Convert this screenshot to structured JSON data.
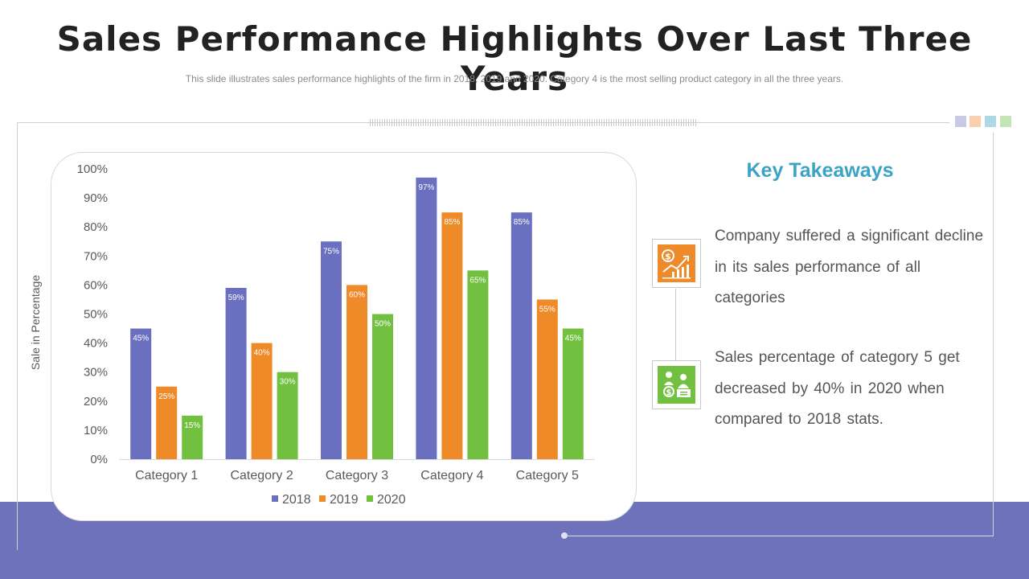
{
  "header": {
    "title": "Sales Performance Highlights Over Last Three Years",
    "subtitle": "This slide illustrates sales performance  highlights of the firm in 2018, 2019 and 2020. Category 4 is the most selling product category in all the three years."
  },
  "decor": {
    "squares": [
      "#c7c9e6",
      "#f8d0b0",
      "#add9e6",
      "#c3e4b4"
    ],
    "band_color": "#6d72bb"
  },
  "chart_data": {
    "type": "bar",
    "categories": [
      "Category 1",
      "Category 2",
      "Category 3",
      "Category 4",
      "Category 5"
    ],
    "series": [
      {
        "name": "2018",
        "values": [
          45,
          59,
          75,
          97,
          85
        ],
        "color": "#6b6fc0",
        "labels": [
          "45%",
          "59%",
          "75%",
          "97%",
          "85%"
        ]
      },
      {
        "name": "2019",
        "values": [
          25,
          40,
          60,
          85,
          55
        ],
        "color": "#ef8a29",
        "labels": [
          "25%",
          "40%",
          "60%",
          "85%",
          "55%"
        ]
      },
      {
        "name": "2020",
        "values": [
          15,
          30,
          50,
          65,
          45
        ],
        "color": "#72c040",
        "labels": [
          "15%",
          "30%",
          "50%",
          "65%",
          "45%"
        ]
      }
    ],
    "ylabel": "Sale in Percentage",
    "ylim": [
      0,
      100
    ],
    "yticks": [
      "0%",
      "10%",
      "20%",
      "30%",
      "40%",
      "50%",
      "60%",
      "70%",
      "80%",
      "90%",
      "100%"
    ],
    "legend_position": "bottom",
    "grid": false
  },
  "takeaways": {
    "title": "Key Takeaways",
    "items": [
      {
        "icon": "growth-chart-icon",
        "color": "#ef8a29",
        "text": "Company  suffered a significant decline in its sales performance of all categories"
      },
      {
        "icon": "business-people-icon",
        "color": "#72c040",
        "text": "Sales percentage of category 5 get decreased by 40% in 2020 when compared  to 2018 stats."
      }
    ]
  }
}
